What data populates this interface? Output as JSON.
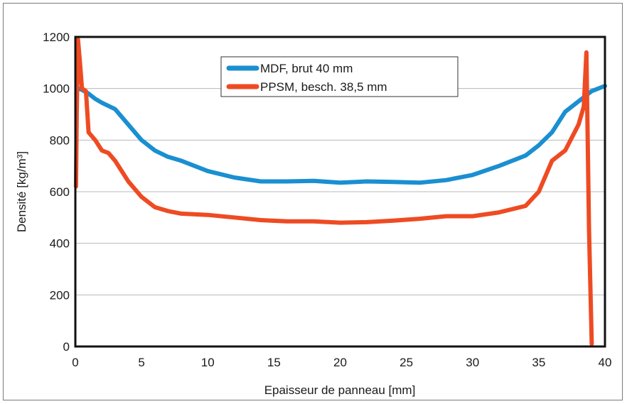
{
  "chart_data": {
    "type": "line",
    "title": "",
    "xlabel": "Epaisseur de panneau [mm]",
    "ylabel": "Densité [kg/m³]",
    "xlim": [
      0,
      40
    ],
    "ylim": [
      0,
      1200
    ],
    "x_ticks": [
      0,
      5,
      10,
      15,
      20,
      25,
      30,
      35,
      40
    ],
    "y_ticks": [
      0,
      200,
      400,
      600,
      800,
      1000,
      1200
    ],
    "grid": "horizontal",
    "legend_position": "top-center",
    "series": [
      {
        "name": "MDF, brut 40 mm",
        "color": "#1a8fd1",
        "x": [
          0.2,
          0.5,
          1,
          1.5,
          2,
          3,
          4,
          5,
          6,
          7,
          8,
          10,
          12,
          14,
          16,
          18,
          20,
          22,
          24,
          26,
          28,
          30,
          32,
          34,
          35,
          36,
          37,
          38,
          39,
          40
        ],
        "y": [
          1000,
          995,
          980,
          960,
          945,
          920,
          860,
          800,
          760,
          735,
          720,
          680,
          655,
          640,
          640,
          642,
          635,
          640,
          638,
          635,
          645,
          665,
          700,
          740,
          780,
          830,
          910,
          950,
          990,
          1010
        ]
      },
      {
        "name": "PPSM, besch. 38,5 mm",
        "color": "#ee4b23",
        "x": [
          0.05,
          0.1,
          0.2,
          0.35,
          0.5,
          0.8,
          1,
          1.5,
          2,
          2.5,
          3,
          4,
          5,
          6,
          7,
          8,
          10,
          12,
          14,
          16,
          18,
          20,
          22,
          24,
          26,
          28,
          30,
          32,
          34,
          35,
          36,
          37,
          38,
          38.4,
          38.6,
          38.8,
          39
        ],
        "y": [
          620,
          900,
          1190,
          1100,
          1000,
          990,
          830,
          800,
          760,
          750,
          720,
          640,
          580,
          540,
          525,
          515,
          510,
          500,
          490,
          485,
          485,
          480,
          482,
          488,
          495,
          505,
          505,
          520,
          545,
          600,
          720,
          760,
          860,
          930,
          1140,
          450,
          10
        ]
      }
    ]
  }
}
